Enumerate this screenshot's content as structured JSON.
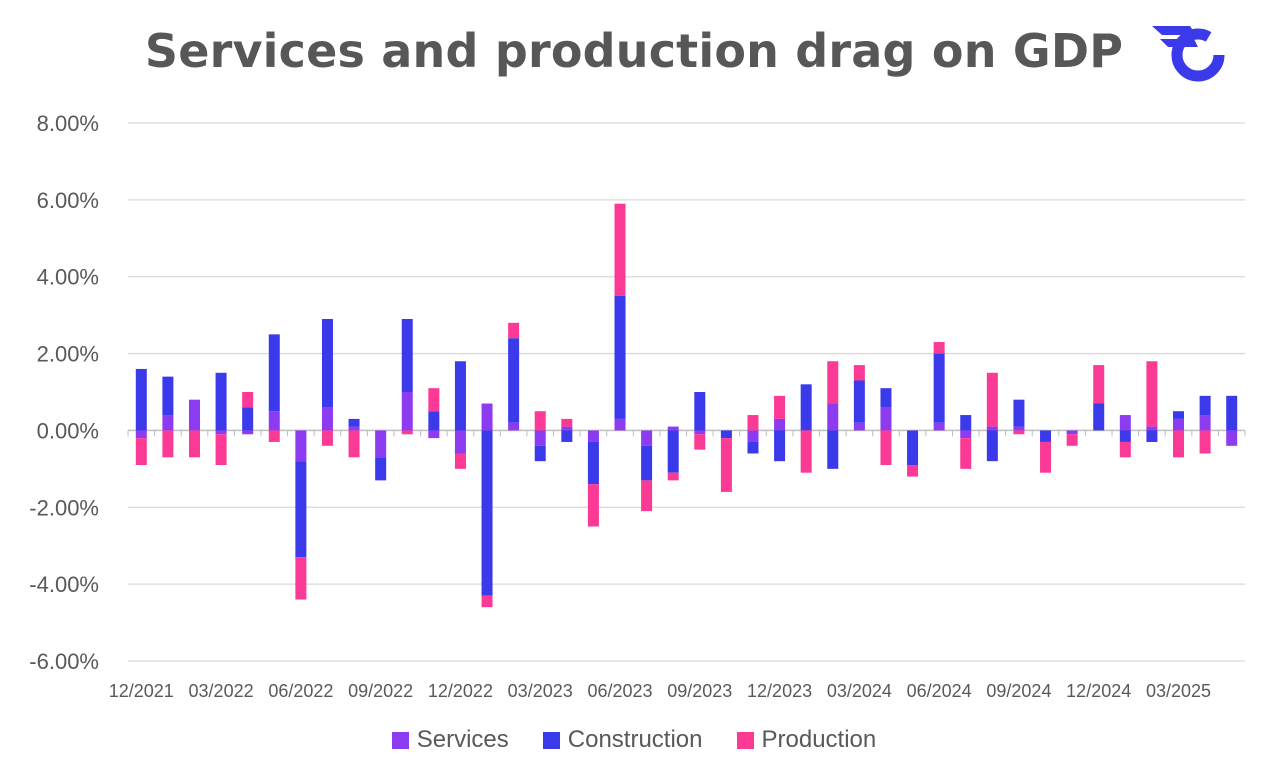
{
  "title": "Services and production drag on GDP",
  "logo": "brand-logo",
  "chart_data": {
    "type": "bar",
    "stacked": true,
    "title": "Services and production drag on GDP",
    "ylim": [
      -6,
      8
    ],
    "ytick_step": 2,
    "ytick_suffix": "%",
    "grid": true,
    "legend_position": "bottom",
    "x_tick_labels": [
      "12/2021",
      "03/2022",
      "06/2022",
      "09/2022",
      "12/2022",
      "03/2023",
      "06/2023",
      "09/2023",
      "12/2023",
      "03/2024",
      "06/2024",
      "09/2024",
      "12/2024",
      "03/2025"
    ],
    "x_tick_indices": [
      0,
      3,
      6,
      9,
      12,
      15,
      18,
      21,
      24,
      27,
      30,
      33,
      36,
      39
    ],
    "series": [
      {
        "name": "Services",
        "color": "#8c3bf0",
        "values": [
          -0.2,
          0.4,
          0.8,
          -0.1,
          -0.1,
          0.5,
          -0.8,
          0.6,
          0.1,
          -0.7,
          1.0,
          -0.2,
          -0.6,
          0.7,
          0.2,
          -0.4,
          0.1,
          -0.3,
          0.3,
          -0.4,
          0.1,
          -0.1,
          0.0,
          -0.3,
          0.3,
          0.0,
          0.7,
          0.2,
          0.6,
          0.0,
          0.2,
          -0.2,
          0.1,
          0.1,
          0.0,
          -0.1,
          0.0,
          0.4,
          0.1,
          0.3,
          0.4,
          -0.4
        ]
      },
      {
        "name": "Construction",
        "color": "#3a3aeb",
        "values": [
          1.6,
          1.0,
          0.0,
          1.5,
          0.6,
          2.0,
          -2.5,
          2.3,
          0.2,
          -0.6,
          1.9,
          0.5,
          1.8,
          -4.3,
          2.2,
          -0.4,
          -0.3,
          -1.1,
          3.2,
          -0.9,
          -1.1,
          1.0,
          -0.2,
          -0.3,
          -0.8,
          1.2,
          -1.0,
          1.1,
          0.5,
          -0.9,
          1.8,
          0.4,
          -0.8,
          0.7,
          -0.3,
          0.0,
          0.7,
          -0.3,
          -0.3,
          0.2,
          0.5,
          0.9
        ]
      },
      {
        "name": "Production",
        "color": "#fb3a96",
        "values": [
          -0.7,
          -0.7,
          -0.7,
          -0.8,
          0.4,
          -0.3,
          -1.1,
          -0.4,
          -0.7,
          0.0,
          -0.1,
          0.6,
          -0.4,
          -0.3,
          0.4,
          0.5,
          0.2,
          -1.1,
          2.4,
          -0.8,
          -0.2,
          -0.4,
          -1.4,
          0.4,
          0.6,
          -1.1,
          1.1,
          0.4,
          -0.9,
          -0.3,
          0.3,
          -0.8,
          1.4,
          -0.1,
          -0.8,
          -0.3,
          1.0,
          -0.4,
          1.7,
          -0.7,
          -0.6,
          0.0
        ]
      }
    ]
  }
}
